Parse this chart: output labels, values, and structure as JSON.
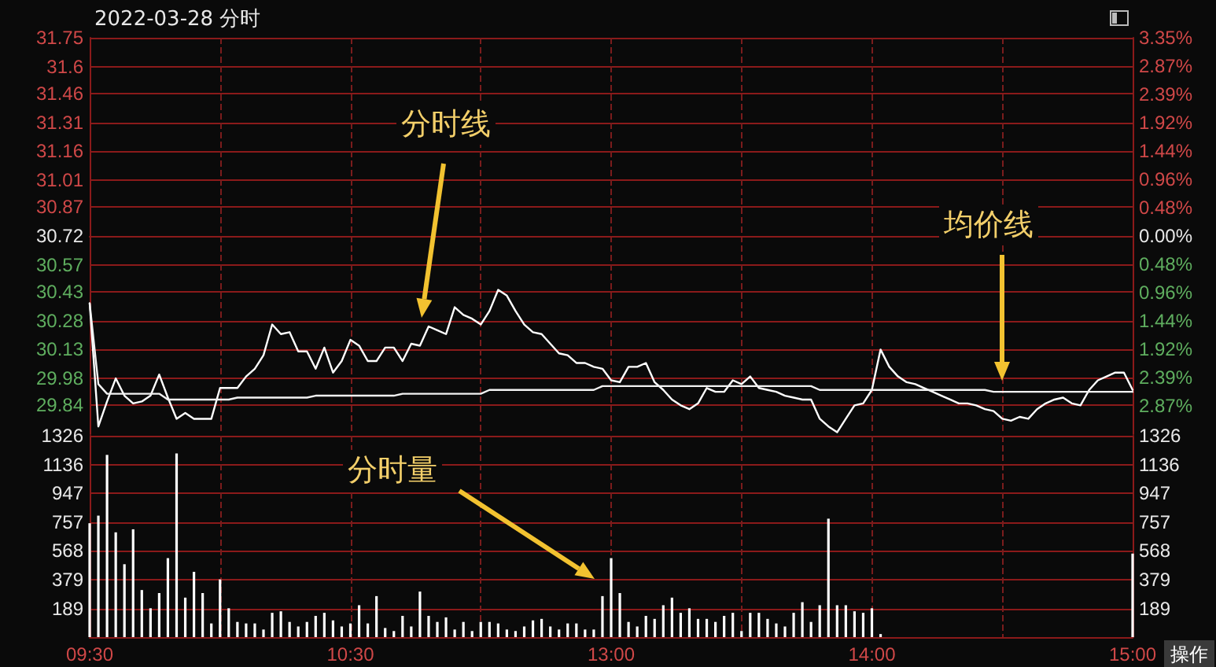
{
  "chart_data": [
    {
      "type": "line",
      "title": "2022-03-28 分时",
      "categories": [
        null,
        null,
        null,
        null,
        null,
        null,
        null,
        null,
        null,
        null,
        null,
        null,
        null,
        null,
        null,
        null,
        null,
        null,
        null,
        null,
        null,
        null,
        null,
        null,
        null,
        null,
        null,
        null,
        null,
        null,
        null,
        null,
        null,
        null,
        null,
        null,
        null,
        null,
        null,
        null,
        null,
        null,
        null,
        null,
        null,
        null,
        null,
        null,
        null,
        null,
        null,
        null,
        null,
        null,
        null,
        null,
        null,
        null,
        null,
        null,
        null,
        null,
        null,
        null,
        null,
        null,
        null,
        null,
        null,
        null,
        null,
        null,
        null,
        null,
        null,
        null,
        null,
        null,
        null,
        null,
        null,
        null,
        null,
        null,
        null,
        null,
        null,
        null,
        null,
        null,
        null,
        null,
        null,
        null,
        null,
        null,
        null,
        null,
        null,
        null,
        null,
        null,
        null,
        null,
        null,
        null,
        null,
        null,
        null,
        null,
        null,
        null,
        null,
        null,
        null,
        null,
        null,
        null,
        null,
        null,
        null
      ],
      "series": [
        {
          "color": "#ffffff",
          "values": [
            30.37,
            29.73,
            29.86,
            29.98,
            29.89,
            29.85,
            29.86,
            29.89,
            30.0,
            29.88,
            29.77,
            29.8,
            29.77,
            29.77,
            29.77,
            29.93,
            29.93,
            29.93,
            29.99,
            30.03,
            30.1,
            30.26,
            30.21,
            30.22,
            30.12,
            30.12,
            30.03,
            30.14,
            30.01,
            30.07,
            30.18,
            30.15,
            30.07,
            30.07,
            30.14,
            30.14,
            30.07,
            30.16,
            30.15,
            30.25,
            30.23,
            30.21,
            30.35,
            30.31,
            30.29,
            30.26,
            30.33,
            30.44,
            30.41,
            30.33,
            30.26,
            30.22,
            30.21,
            30.16,
            30.11,
            30.1,
            30.06,
            30.06,
            30.04,
            30.03,
            29.97,
            29.96,
            30.04,
            30.04,
            30.06,
            29.96,
            29.92,
            29.87,
            29.84,
            29.82,
            29.85,
            29.93,
            29.91,
            29.91,
            29.97,
            29.95,
            29.99,
            29.93,
            29.92,
            29.91,
            29.89,
            29.88,
            29.87,
            29.87,
            29.77,
            29.73,
            29.7,
            29.77,
            29.84,
            29.85,
            29.92,
            30.13,
            30.04,
            29.99,
            29.96,
            29.95,
            29.93,
            29.91,
            29.89,
            29.87,
            29.85,
            29.85,
            29.84,
            29.82,
            29.81,
            29.77,
            29.76,
            29.78,
            29.77,
            29.82,
            29.85,
            29.87,
            29.88,
            29.85,
            29.84,
            29.92,
            29.97,
            29.99,
            30.01,
            30.01,
            29.92
          ]
        },
        {
          "color": "#f2f2f2",
          "values": [
            30.37,
            29.95,
            29.9,
            29.9,
            29.9,
            29.9,
            29.9,
            29.9,
            29.9,
            29.87,
            29.87,
            29.87,
            29.87,
            29.87,
            29.87,
            29.87,
            29.87,
            29.88,
            29.88,
            29.88,
            29.88,
            29.88,
            29.88,
            29.88,
            29.88,
            29.88,
            29.89,
            29.89,
            29.89,
            29.89,
            29.89,
            29.89,
            29.89,
            29.89,
            29.89,
            29.89,
            29.9,
            29.9,
            29.9,
            29.9,
            29.9,
            29.9,
            29.9,
            29.9,
            29.9,
            29.9,
            29.92,
            29.92,
            29.92,
            29.92,
            29.92,
            29.92,
            29.92,
            29.92,
            29.92,
            29.92,
            29.92,
            29.92,
            29.92,
            29.94,
            29.94,
            29.94,
            29.94,
            29.94,
            29.94,
            29.94,
            29.94,
            29.94,
            29.94,
            29.94,
            29.94,
            29.94,
            29.94,
            29.94,
            29.94,
            29.94,
            29.94,
            29.94,
            29.94,
            29.94,
            29.94,
            29.94,
            29.94,
            29.94,
            29.92,
            29.92,
            29.92,
            29.92,
            29.92,
            29.92,
            29.92,
            29.92,
            29.92,
            29.92,
            29.92,
            29.92,
            29.92,
            29.92,
            29.92,
            29.92,
            29.92,
            29.92,
            29.92,
            29.92,
            29.91,
            29.91,
            29.91,
            29.91,
            29.91,
            29.91,
            29.91,
            29.91,
            29.91,
            29.91,
            29.91,
            29.91,
            29.91,
            29.91,
            29.91,
            29.91,
            29.91
          ]
        }
      ],
      "ylim": [
        29.69,
        31.75
      ],
      "yticks": [
        29.84,
        29.98,
        30.13,
        30.28,
        30.43,
        30.57,
        30.72,
        30.87,
        31.01,
        31.16,
        31.31,
        31.46,
        31.6,
        31.75
      ],
      "y2lim": [
        -3.35,
        3.35
      ],
      "y2ticks": [
        {
          "value": -2.87,
          "label": "2.87%"
        },
        {
          "value": -2.39,
          "label": "2.39%"
        },
        {
          "value": -1.92,
          "label": "1.92%"
        },
        {
          "value": -1.44,
          "label": "1.44%"
        },
        {
          "value": -0.96,
          "label": "0.96%"
        },
        {
          "value": -0.48,
          "label": "0.48%"
        },
        {
          "value": 0,
          "label": "0.00%"
        },
        {
          "value": 0.48,
          "label": "0.48%"
        },
        {
          "value": 0.96,
          "label": "0.96%"
        },
        {
          "value": 1.44,
          "label": "1.44%"
        },
        {
          "value": 1.92,
          "label": "1.92%"
        },
        {
          "value": 2.39,
          "label": "2.39%"
        },
        {
          "value": 2.87,
          "label": "2.87%"
        },
        {
          "value": 3.35,
          "label": "3.35%"
        }
      ],
      "grid": true,
      "tick_labels": "y",
      "annotations": [
        "分时线",
        "均价线"
      ]
    },
    {
      "type": "bar",
      "categories": [
        "09:30",
        null,
        null,
        null,
        null,
        null,
        null,
        null,
        null,
        null,
        null,
        null,
        null,
        null,
        null,
        null,
        null,
        null,
        null,
        null,
        null,
        null,
        null,
        null,
        null,
        null,
        null,
        null,
        null,
        null,
        "10:30",
        null,
        null,
        null,
        null,
        null,
        null,
        null,
        null,
        null,
        null,
        null,
        null,
        null,
        null,
        null,
        null,
        null,
        null,
        null,
        null,
        null,
        null,
        null,
        null,
        null,
        null,
        null,
        null,
        null,
        "13:00",
        null,
        null,
        null,
        null,
        null,
        null,
        null,
        null,
        null,
        null,
        null,
        null,
        null,
        null,
        null,
        null,
        null,
        null,
        null,
        null,
        null,
        null,
        null,
        null,
        null,
        null,
        null,
        null,
        null,
        "14:00",
        null,
        null,
        null,
        null,
        null,
        null,
        null,
        null,
        null,
        null,
        null,
        null,
        null,
        null,
        null,
        null,
        null,
        null,
        null,
        null,
        null,
        null,
        null,
        null,
        null,
        null,
        null,
        null,
        null,
        "15:00"
      ],
      "color": "#ffffff",
      "values": [
        750,
        800,
        1200,
        690,
        480,
        710,
        310,
        190,
        290,
        520,
        1210,
        260,
        430,
        290,
        90,
        380,
        190,
        100,
        90,
        90,
        50,
        160,
        170,
        100,
        70,
        100,
        140,
        160,
        110,
        70,
        90,
        210,
        90,
        270,
        60,
        40,
        140,
        70,
        300,
        140,
        100,
        130,
        50,
        100,
        40,
        100,
        100,
        90,
        50,
        40,
        70,
        110,
        120,
        70,
        50,
        90,
        90,
        50,
        50,
        270,
        520,
        290,
        100,
        70,
        140,
        120,
        210,
        260,
        160,
        190,
        120,
        120,
        100,
        140,
        160,
        40,
        160,
        160,
        120,
        90,
        70,
        160,
        230,
        100,
        210,
        780,
        210,
        210,
        170,
        160,
        190,
        20,
        null,
        null,
        null,
        null,
        null,
        null,
        null,
        null,
        null,
        null,
        null,
        null,
        null,
        null,
        null,
        null,
        null,
        null,
        null,
        null,
        null,
        null,
        null,
        null,
        null,
        null,
        null,
        null,
        550
      ],
      "ylim": [
        0,
        1326
      ],
      "yticks": [
        189,
        379,
        568,
        757,
        947,
        1136,
        1326
      ],
      "y2lim": [
        0,
        1326
      ],
      "y2ticks": [
        189,
        379,
        568,
        757,
        947,
        1136,
        1326
      ],
      "grid": true,
      "annotations": [
        "分时量",
        "操作"
      ]
    }
  ]
}
